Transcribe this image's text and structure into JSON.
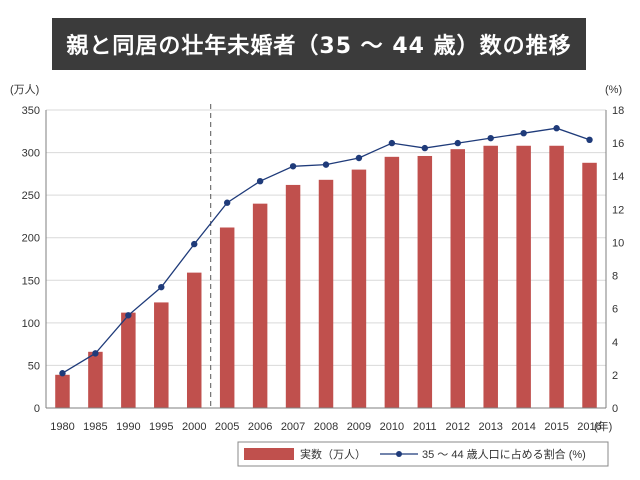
{
  "chart_data": {
    "type": "bar",
    "title": "親と同居の壮年未婚者（35 ～ 44 歳）数の推移",
    "categories": [
      "1980",
      "1985",
      "1990",
      "1995",
      "2000",
      "2005",
      "2006",
      "2007",
      "2008",
      "2009",
      "2010",
      "2011",
      "2012",
      "2013",
      "2014",
      "2015",
      "2016"
    ],
    "series": [
      {
        "name": "実数（万人）",
        "type": "bar",
        "axis": "left",
        "color": "#c0504d",
        "values": [
          39,
          66,
          112,
          124,
          159,
          212,
          240,
          262,
          268,
          280,
          295,
          296,
          304,
          308,
          308,
          308,
          288
        ]
      },
      {
        "name": "35 ～ 44 歳人口に占める割合 (%)",
        "type": "line",
        "axis": "right",
        "color": "#1f3b7a",
        "values": [
          2.1,
          3.3,
          5.6,
          7.3,
          9.9,
          12.4,
          13.7,
          14.6,
          14.7,
          15.1,
          16.0,
          15.7,
          16.0,
          16.3,
          16.6,
          16.9,
          16.2
        ]
      }
    ],
    "ylabel": "(万人)",
    "y2label": "(%)",
    "xlabel": "(年)",
    "ylim": [
      0,
      350
    ],
    "yticks": [
      0,
      50,
      100,
      150,
      200,
      250,
      300,
      350
    ],
    "y2lim": [
      0,
      18
    ],
    "y2ticks": [
      0,
      2,
      4,
      6,
      8,
      10,
      12,
      14,
      16,
      18
    ],
    "grid": true,
    "legend_position": "bottom-right",
    "separator_after": "2000"
  }
}
